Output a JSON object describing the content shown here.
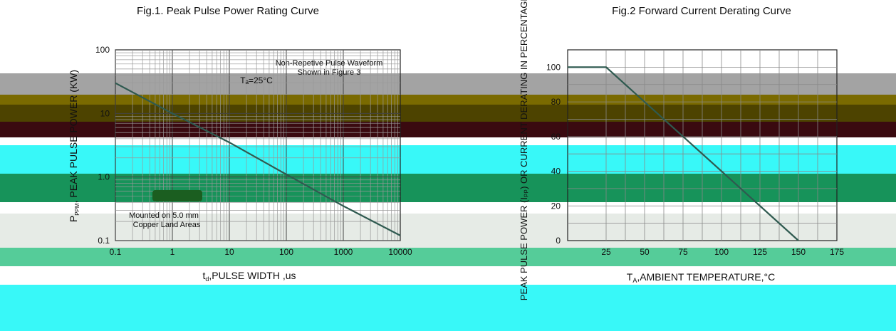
{
  "colors": {
    "band_gray": "#a3a3a3",
    "band_olive": "#7a6a00",
    "band_darkolive": "#4d4300",
    "band_maroon": "#3a0a10",
    "band_cyan": "#38f8f8",
    "band_green": "#17935a",
    "band_lightgray": "#e6ebe6",
    "band_seafoam": "#55cc99",
    "curve": "#2f5a50"
  },
  "chart_data": [
    {
      "type": "line",
      "title": "Fig.1. Peak Pulse Power Rating Curve",
      "xlabel": "tₙ,PULSE WIDTH ,us",
      "xlabel_parts": {
        "main1": "t",
        "sub": "d",
        "main2": ",PULSE WIDTH ,us"
      },
      "ylabel": "PEAK PULSE POWER",
      "ylabel_parts": {
        "main": "P",
        "sub": "PPM",
        "rest": ", PEAK PULSE POWER (KW)"
      },
      "x_scale": "log",
      "y_scale": "log",
      "xlim": [
        0.1,
        10000
      ],
      "ylim": [
        0.1,
        100
      ],
      "x_ticks": [
        "0.1",
        "1",
        "10",
        "100",
        "1000",
        "10000"
      ],
      "y_ticks": [
        "0.1",
        "1.0",
        "10",
        "100"
      ],
      "annotations": [
        "Non-Repetive  Pulse Waveform",
        "Shown in Figure 3",
        "Tₐ=25°C",
        "Mounted on 5.0 mm",
        "Copper Land Areas"
      ],
      "grid": true,
      "series": [
        {
          "x": [
            0.1,
            1,
            10,
            100,
            1000,
            10000
          ],
          "y": [
            30,
            10,
            3.5,
            1.1,
            0.35,
            0.12
          ]
        }
      ]
    },
    {
      "type": "line",
      "title": "Fig.2  Forward Current Derating Curve",
      "xlabel": "Tₐ,AMBIENT TEMPERATURE,°C",
      "xlabel_parts": {
        "main1": "T",
        "sub": "A",
        "main2": ",AMBIENT TEMPERATURE,°C"
      },
      "ylabel": "PEAK PULSE POWER (Iₚₚ) OR CURRENT DERATING IN PERCENTAGE %",
      "x_ticks": [
        "25",
        "50",
        "75",
        "100",
        "125",
        "150",
        "175"
      ],
      "y_ticks": [
        "0",
        "20",
        "40",
        "60",
        "80",
        "100"
      ],
      "xlim": [
        0,
        175
      ],
      "ylim": [
        0,
        110
      ],
      "grid": true,
      "series": [
        {
          "x": [
            0,
            25,
            150
          ],
          "y": [
            100,
            100,
            0
          ]
        }
      ]
    }
  ]
}
